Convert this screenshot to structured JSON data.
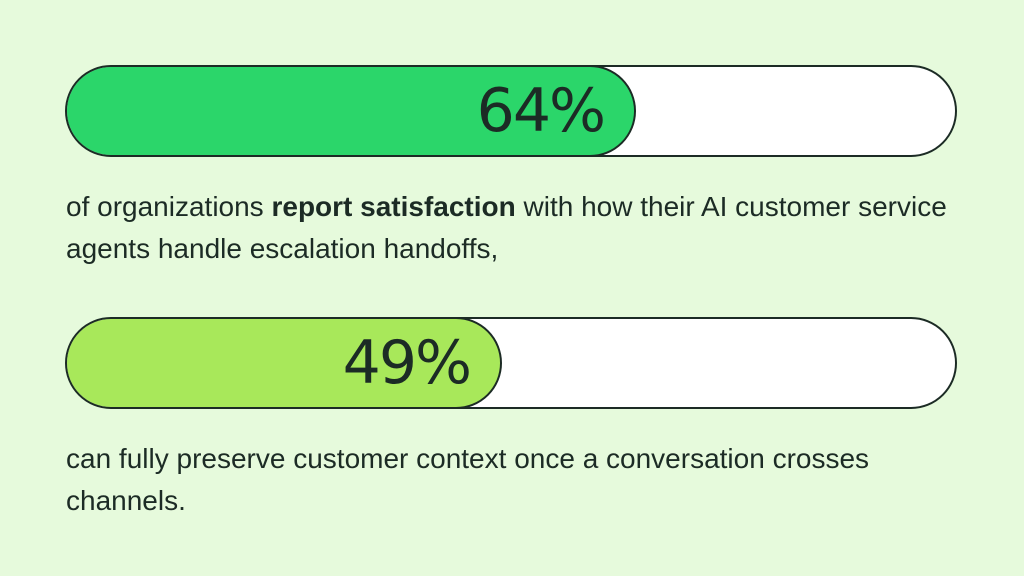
{
  "colors": {
    "background": "#e6fadc",
    "track": "#ffffff",
    "outline": "#1c2b25",
    "text": "#1c2b25"
  },
  "stats": [
    {
      "value_label": "64%",
      "fill_percent": 64,
      "fill_color": "#2bd66a",
      "caption_before": "of organizations ",
      "caption_emphasis": "report satisfaction",
      "caption_after": " with how their AI customer service agents handle escalation handoffs,"
    },
    {
      "value_label": "49%",
      "fill_percent": 49,
      "fill_color": "#a8e85a",
      "caption_before": "can fully preserve customer context once a conversation crosses channels.",
      "caption_emphasis": "",
      "caption_after": ""
    }
  ]
}
